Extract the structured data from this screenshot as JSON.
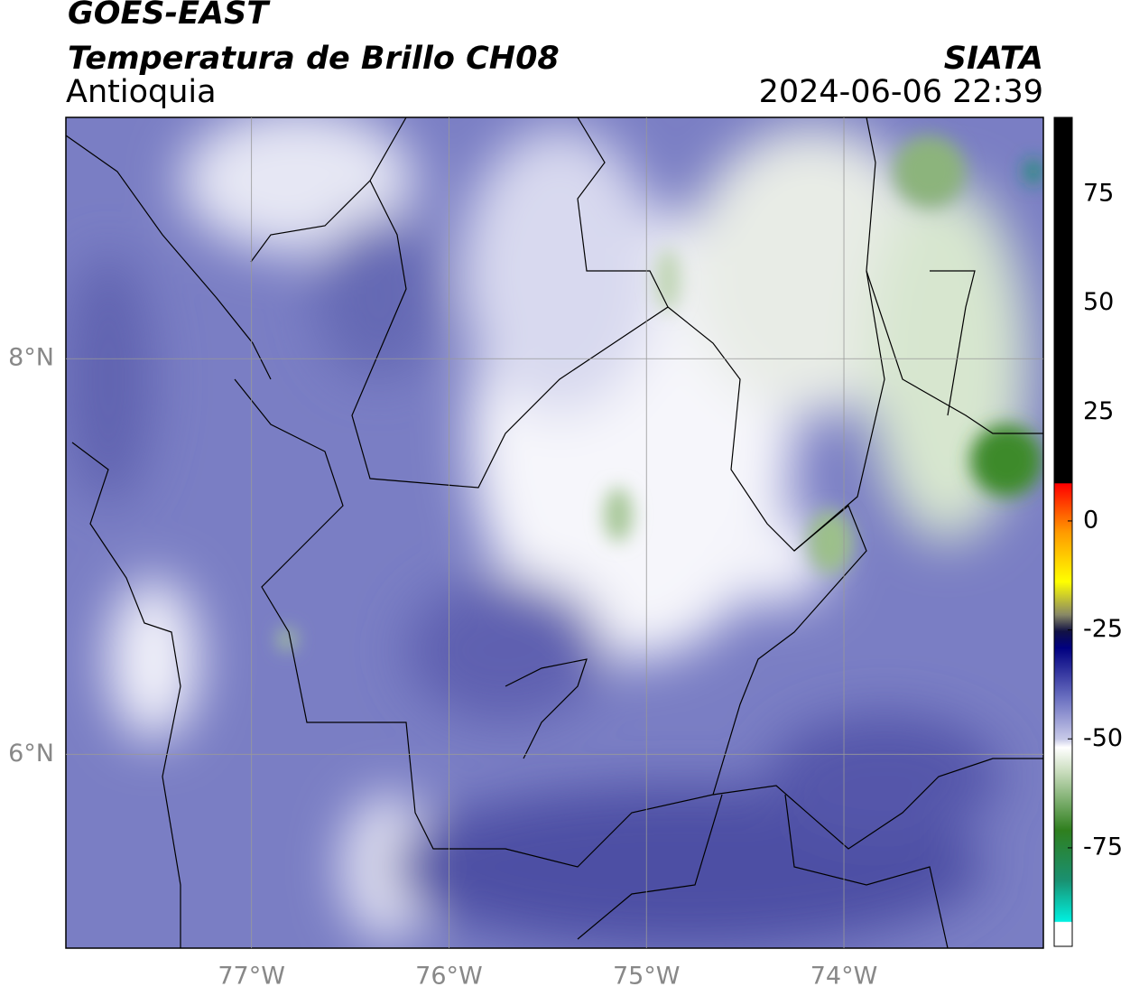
{
  "header": {
    "title": "GOES-EAST",
    "subtitle": "Temperatura de Brillo CH08",
    "region": "Antioquia",
    "source": "SIATA",
    "timestamp": "2024-06-06 22:39"
  },
  "map": {
    "lon_range": [
      -77.94,
      -72.99
    ],
    "lat_range": [
      5.02,
      9.22
    ],
    "lon_ticks": [
      {
        "value": -77,
        "label": "77°W"
      },
      {
        "value": -76,
        "label": "76°W"
      },
      {
        "value": -75,
        "label": "75°W"
      },
      {
        "value": -74,
        "label": "74°W"
      }
    ],
    "lat_ticks": [
      {
        "value": 8,
        "label": "8°N"
      },
      {
        "value": 6,
        "label": "6°N"
      }
    ],
    "grid": true
  },
  "colorbar": {
    "range": [
      -97.6,
      92.6
    ],
    "ticks": [
      75,
      50,
      25,
      0,
      -25,
      -50,
      -75
    ]
  }
}
